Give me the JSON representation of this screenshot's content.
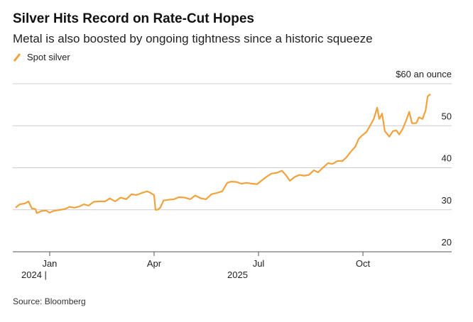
{
  "chart_data": {
    "type": "line",
    "title": "Silver Hits Record on Rate-Cut Hopes",
    "subtitle": "Metal is also boosted by ongoing tightness since a historic squeeze",
    "source": "Source: Bloomberg",
    "year_labels": [
      "2024 |",
      "2025"
    ],
    "grid": true,
    "xlim": [
      -0.06,
      12.55
    ],
    "xticks": [
      {
        "value": 1,
        "label": "Jan"
      },
      {
        "value": 4,
        "label": "Apr"
      },
      {
        "value": 7,
        "label": "Jul"
      },
      {
        "value": 10,
        "label": "Oct"
      }
    ],
    "ylim": [
      20,
      60
    ],
    "yticks": [
      20,
      30,
      40,
      50,
      {
        "value": 60,
        "label": "$60 an ounce"
      }
    ],
    "x": [
      0.02,
      0.14,
      0.29,
      0.39,
      0.49,
      0.59,
      0.63,
      0.76,
      0.9,
      1,
      1.1,
      1.31,
      1.45,
      1.57,
      1.71,
      1.86,
      1.98,
      2.12,
      2.27,
      2.43,
      2.59,
      2.73,
      2.88,
      3.04,
      3.2,
      3.35,
      3.49,
      3.65,
      3.8,
      3.9,
      4,
      4.04,
      4.1,
      4.18,
      4.27,
      4.43,
      4.57,
      4.71,
      4.88,
      5.04,
      5.18,
      5.35,
      5.49,
      5.65,
      5.8,
      5.96,
      6.1,
      6.22,
      6.37,
      6.51,
      6.65,
      6.82,
      6.96,
      7.08,
      7.22,
      7.37,
      7.53,
      7.67,
      7.8,
      7.9,
      8.04,
      8.18,
      8.31,
      8.45,
      8.59,
      8.71,
      8.86,
      9,
      9.12,
      9.27,
      9.41,
      9.53,
      9.65,
      9.78,
      9.88,
      9.98,
      10.1,
      10.18,
      10.31,
      10.41,
      10.47,
      10.55,
      10.63,
      10.76,
      10.86,
      10.96,
      11.04,
      11.14,
      11.24,
      11.33,
      11.41,
      11.53,
      11.61,
      11.71,
      11.8,
      11.86,
      11.94
    ],
    "series": [
      {
        "name": "Spot silver",
        "color": "#f2a23c",
        "values": [
          30.5,
          31.3,
          31.5,
          32,
          30.3,
          30.2,
          29.2,
          29.7,
          29.8,
          29.3,
          29.7,
          30,
          30.2,
          30.7,
          30.5,
          30.8,
          31.3,
          31,
          31.9,
          32,
          32,
          32.7,
          32,
          32.9,
          32.5,
          33.7,
          33.5,
          34,
          34.4,
          34,
          33.5,
          30,
          30,
          30.5,
          32.2,
          32.4,
          32.5,
          33,
          32.9,
          32.5,
          33.4,
          32.7,
          32.5,
          33.7,
          34,
          34.4,
          36.4,
          36.7,
          36.6,
          36.2,
          36.4,
          36.2,
          36.1,
          36.9,
          37.8,
          38.6,
          38.8,
          39.3,
          38.1,
          36.9,
          37.8,
          38.3,
          38.1,
          38.3,
          39.4,
          38.9,
          40.1,
          41.1,
          40.9,
          41.6,
          41.6,
          42.5,
          43.8,
          45,
          46.9,
          47.7,
          48.5,
          49.6,
          51.6,
          54.3,
          51.6,
          52.9,
          48.7,
          47.4,
          48.7,
          48.9,
          47.9,
          49.2,
          51.2,
          53.3,
          50.6,
          50.6,
          52,
          51.6,
          53.6,
          57,
          57.5
        ]
      }
    ]
  }
}
